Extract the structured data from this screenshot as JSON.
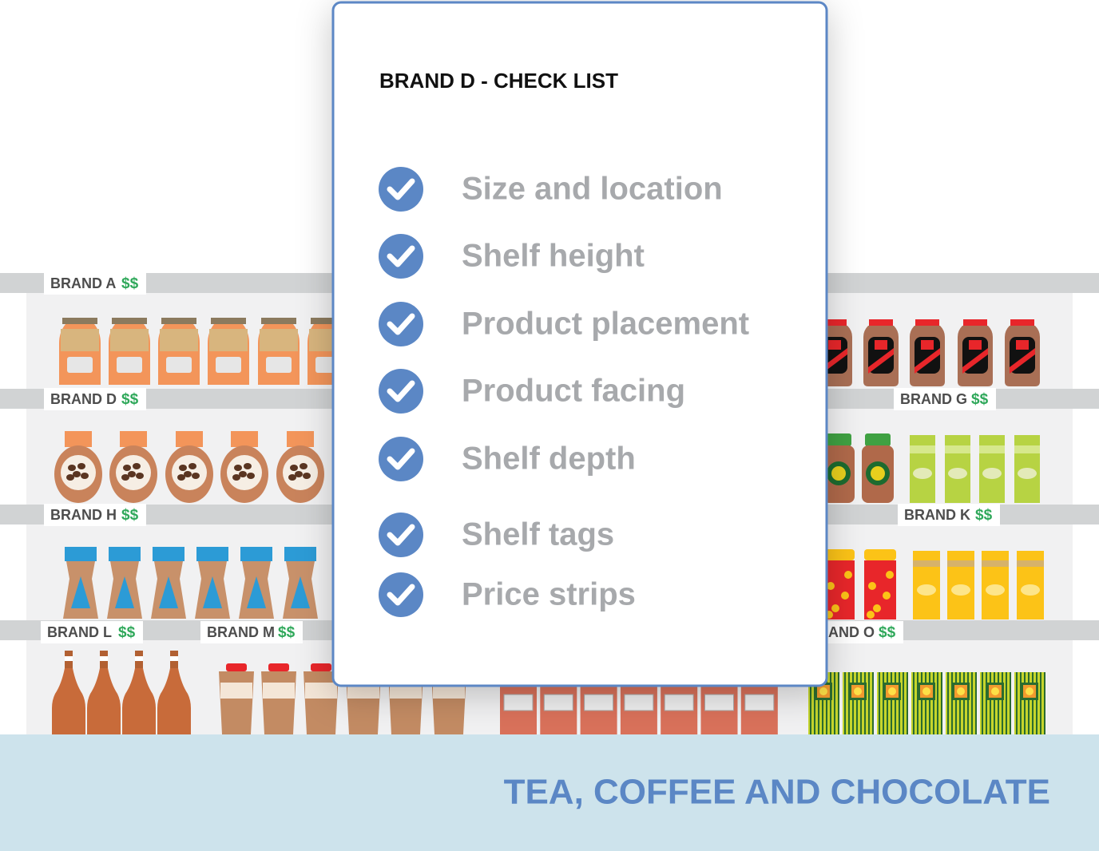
{
  "checklist": {
    "title": "BRAND D - CHECK LIST",
    "items": [
      "Size and location",
      "Shelf height",
      "Product placement",
      "Product facing",
      "Shelf depth",
      "Shelf tags",
      "Price strips"
    ]
  },
  "shelf_tags": [
    {
      "brand": "BRAND A",
      "price": "$$"
    },
    {
      "brand": "BRAND D",
      "price": "$$"
    },
    {
      "brand": "BRAND H",
      "price": "$$"
    },
    {
      "brand": "BRAND L",
      "price": "$$"
    },
    {
      "brand": "BRAND M",
      "price": "$$"
    },
    {
      "brand": "BRAND G",
      "price": "$$"
    },
    {
      "brand": "BRAND K",
      "price": "$$"
    },
    {
      "brand": "BRAND O",
      "price": "$$"
    }
  ],
  "footer": {
    "title": "TEA, COFFEE AND CHOCOLATE"
  }
}
